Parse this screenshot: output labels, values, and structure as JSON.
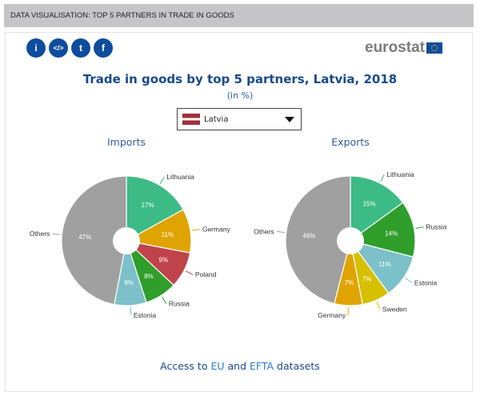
{
  "header": {
    "title": "DATA VISUALISATION: TOP 5 PARTNERS IN TRADE IN GOODS"
  },
  "toolbar": {
    "icons": [
      "info-icon",
      "embed-code-icon",
      "twitter-icon",
      "facebook-icon"
    ],
    "glyphs": [
      "i",
      "</>",
      "t",
      "f"
    ]
  },
  "logo": {
    "text": "eurostat"
  },
  "chart_title": "Trade in goods by top 5 partners, Latvia, 2018",
  "unit": "(in %)",
  "country_select": {
    "value": "Latvia"
  },
  "chart_data": [
    {
      "type": "pie",
      "title": "Imports",
      "categories": [
        "Lithuania",
        "Germany",
        "Poland",
        "Russia",
        "Estonia",
        "Others"
      ],
      "values": [
        17,
        11,
        9,
        8,
        8,
        47
      ],
      "labels": [
        "17%",
        "11%",
        "9%",
        "8%",
        "8%",
        "47%"
      ],
      "colors": [
        "#3dbb86",
        "#e0a400",
        "#c0434b",
        "#2f9e2a",
        "#7cc0c9",
        "#a0a0a0"
      ]
    },
    {
      "type": "pie",
      "title": "Exports",
      "categories": [
        "Lithuania",
        "Russia",
        "Estonia",
        "Sweden",
        "Germany",
        "Others"
      ],
      "values": [
        15,
        14,
        11,
        7,
        7,
        46
      ],
      "labels": [
        "15%",
        "14%",
        "11%",
        "7%",
        "7%",
        "46%"
      ],
      "colors": [
        "#3dbb86",
        "#2f9e2a",
        "#7cc0c9",
        "#d6c000",
        "#e0a400",
        "#a0a0a0"
      ]
    }
  ],
  "footer": {
    "prefix": "Access to ",
    "link1": "EU",
    "mid": " and ",
    "link2": "EFTA",
    "suffix": " datasets"
  }
}
